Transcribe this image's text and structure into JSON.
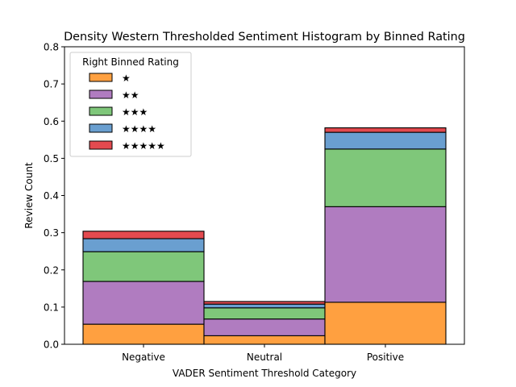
{
  "chart_data": {
    "type": "bar",
    "stacked": true,
    "title": "Density Western Thresholded Sentiment Histogram by Binned Rating",
    "xlabel": "VADER Sentiment Threshold Category",
    "ylabel": "Review Count",
    "categories": [
      "Negative",
      "Neutral",
      "Positive"
    ],
    "ylim": [
      0,
      0.8
    ],
    "yticks": [
      "0.0",
      "0.1",
      "0.2",
      "0.3",
      "0.4",
      "0.5",
      "0.6",
      "0.7",
      "0.8"
    ],
    "legend": {
      "title": "Right Binned Rating",
      "placement": "top-left"
    },
    "series": [
      {
        "name": "★",
        "color": "#ffa040",
        "values": [
          0.054,
          0.023,
          0.113
        ]
      },
      {
        "name": "★★",
        "color": "#b07cc0",
        "values": [
          0.115,
          0.045,
          0.257
        ]
      },
      {
        "name": "★★★",
        "color": "#7fc77a",
        "values": [
          0.08,
          0.03,
          0.155
        ]
      },
      {
        "name": "★★★★",
        "color": "#6a9fd0",
        "values": [
          0.035,
          0.01,
          0.045
        ]
      },
      {
        "name": "★★★★★",
        "color": "#e34a4f",
        "values": [
          0.02,
          0.007,
          0.012
        ]
      }
    ]
  }
}
